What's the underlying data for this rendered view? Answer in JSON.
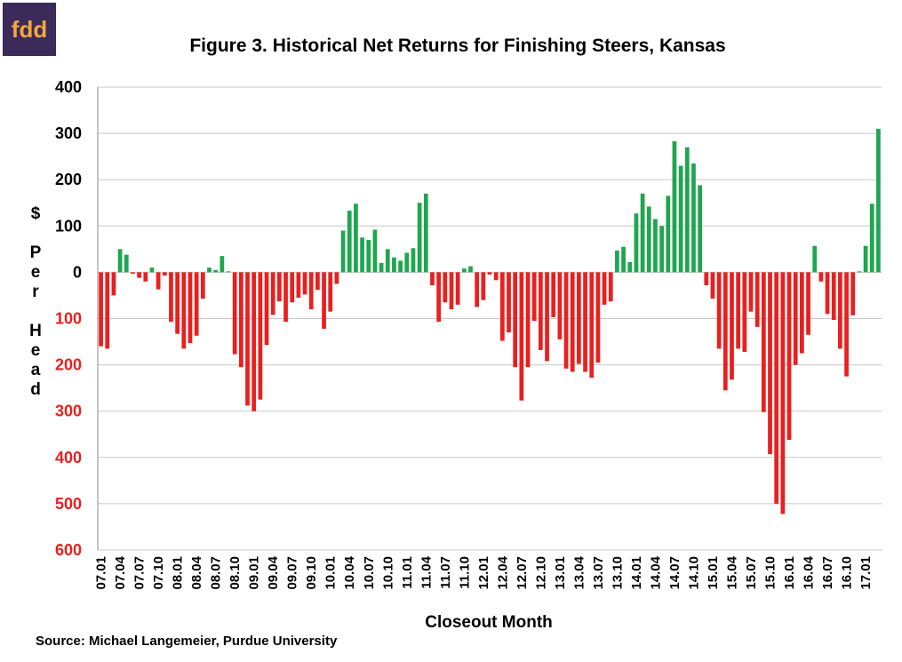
{
  "logo": "fdd",
  "chart_data": {
    "type": "bar",
    "title": "Figure 3.  Historical Net Returns for Finishing Steers, Kansas",
    "y_label": "$ Per Head",
    "x_label": "Closeout Month",
    "source": "Source:  Michael Langemeier, Purdue University",
    "positive_color": "#1fa64f",
    "negative_color": "#e8201f",
    "negative_tick_color": "#e8201f",
    "grid": true,
    "ylim": [
      -600,
      400
    ],
    "yticks": [
      {
        "value": -600,
        "label": "600"
      },
      {
        "value": -500,
        "label": "500"
      },
      {
        "value": -400,
        "label": "400"
      },
      {
        "value": -300,
        "label": "300"
      },
      {
        "value": -200,
        "label": "200"
      },
      {
        "value": -100,
        "label": "100"
      },
      0,
      100,
      200,
      300,
      400
    ],
    "categories": [
      "07.01",
      null,
      null,
      "07.04",
      null,
      null,
      "07.07",
      null,
      null,
      "07.10",
      null,
      null,
      "08.01",
      null,
      null,
      "08.04",
      null,
      null,
      "08.07",
      null,
      null,
      "08.10",
      null,
      null,
      "09.01",
      null,
      null,
      "09.04",
      null,
      null,
      "09.07",
      null,
      null,
      "09.10",
      null,
      null,
      "10.01",
      null,
      null,
      "10.04",
      null,
      null,
      "10.07",
      null,
      null,
      "10.10",
      null,
      null,
      "11.01",
      null,
      null,
      "11.04",
      null,
      null,
      "11.07",
      null,
      null,
      "11.10",
      null,
      null,
      "12.01",
      null,
      null,
      "12.04",
      null,
      null,
      "12.07",
      null,
      null,
      "12.10",
      null,
      null,
      "13.01",
      null,
      null,
      "13.04",
      null,
      null,
      "13.07",
      null,
      null,
      "13.10",
      null,
      null,
      "14.01",
      null,
      null,
      "14.04",
      null,
      null,
      "14.07",
      null,
      null,
      "14.10",
      null,
      null,
      "15.01",
      null,
      null,
      "15.04",
      null,
      null,
      "15.07",
      null,
      null,
      "15.10",
      null,
      null,
      "16.01",
      null,
      null,
      "16.04",
      null,
      null,
      "16.07",
      null,
      null,
      "16.10",
      null,
      null,
      "17.01",
      null,
      null
    ],
    "values": [
      -160,
      -165,
      -50,
      50,
      38,
      -3,
      -12,
      -20,
      10,
      -37,
      -7,
      -107,
      -133,
      -165,
      -153,
      -137,
      -57,
      10,
      5,
      35,
      2,
      -177,
      -205,
      -288,
      -300,
      -275,
      -157,
      -92,
      -63,
      -107,
      -65,
      -55,
      -48,
      -80,
      -38,
      -122,
      -85,
      -25,
      90,
      133,
      148,
      75,
      70,
      92,
      20,
      50,
      32,
      25,
      42,
      52,
      150,
      170,
      -28,
      -107,
      -65,
      -80,
      -70,
      8,
      13,
      -75,
      -60,
      -5,
      -17,
      -148,
      -130,
      -205,
      -277,
      -205,
      -105,
      -168,
      -192,
      -97,
      -145,
      -208,
      -215,
      -198,
      -215,
      -228,
      -195,
      -70,
      -63,
      47,
      55,
      22,
      127,
      170,
      142,
      115,
      100,
      165,
      283,
      230,
      270,
      235,
      188,
      -28,
      -57,
      -165,
      -255,
      -232,
      -165,
      -172,
      -85,
      -118,
      -302,
      -393,
      -500,
      -522,
      -362,
      -200,
      -175,
      -135,
      57,
      -20,
      -90,
      -103,
      -165,
      -225,
      -93,
      2,
      57,
      148,
      310
    ]
  }
}
